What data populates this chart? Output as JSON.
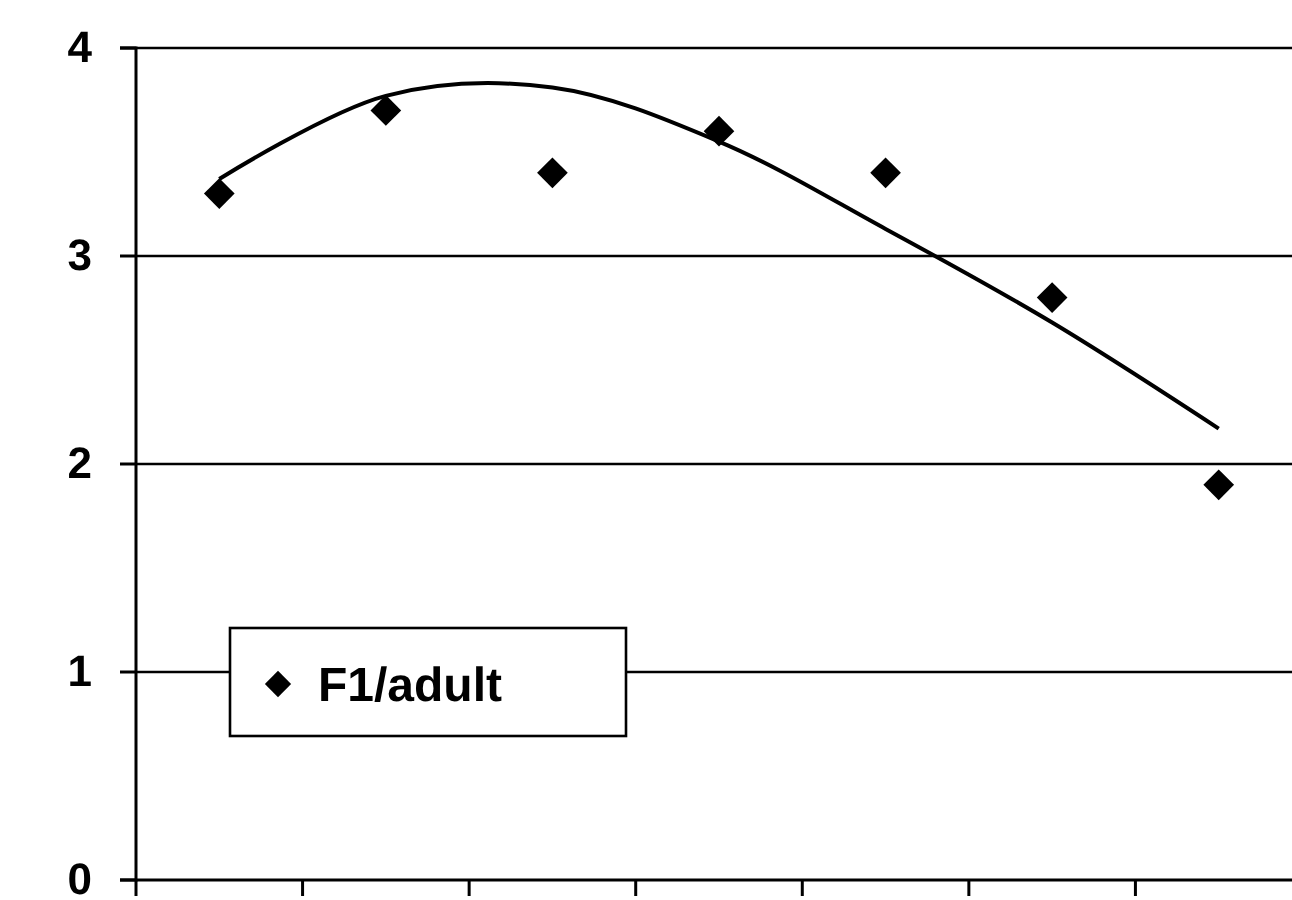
{
  "chart_data": {
    "type": "scatter",
    "categories": [
      null,
      null,
      null,
      null,
      null,
      null,
      null
    ],
    "series": [
      {
        "name": "F1/adult",
        "color": "#000000",
        "marker": "diamond",
        "values": [
          3.3,
          3.7,
          3.4,
          3.6,
          3.4,
          2.8,
          1.9
        ]
      },
      {
        "type": "line",
        "color": "#000000",
        "marker": "none",
        "line_style": "solid",
        "values": [
          3.37,
          3.77,
          3.81,
          3.55,
          3.13,
          2.68,
          2.17
        ]
      }
    ],
    "ylim": [
      0,
      4
    ],
    "yticks": [
      0,
      1,
      2,
      3,
      4
    ],
    "grid": "y",
    "legend": "bottom left",
    "tick_labels": "y"
  }
}
